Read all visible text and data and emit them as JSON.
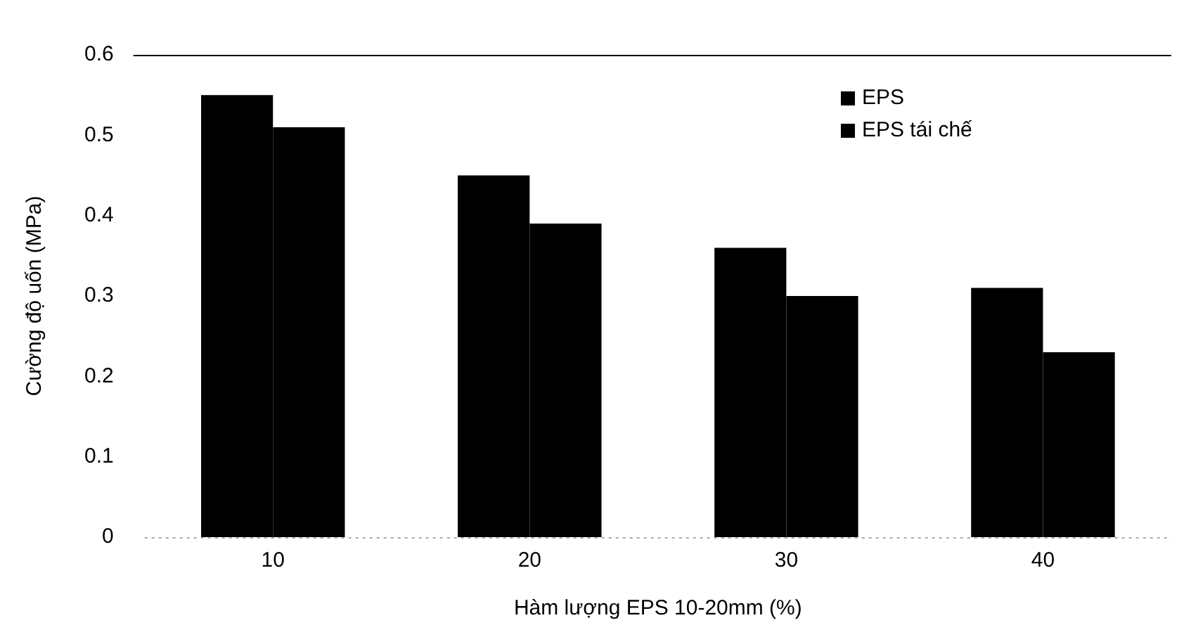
{
  "chart_data": {
    "type": "bar",
    "xlabel": "Hàm lượng EPS 10-20mm (%)",
    "ylabel": "Cường độ uốn (MPa)",
    "categories": [
      "10",
      "20",
      "30",
      "40"
    ],
    "series": [
      {
        "name": "EPS",
        "color": "#000000",
        "values": [
          0.55,
          0.45,
          0.36,
          0.31
        ]
      },
      {
        "name": "EPS tái chế",
        "color": "#000000",
        "values": [
          0.51,
          0.39,
          0.3,
          0.23
        ]
      }
    ],
    "ylim": [
      0,
      0.6
    ],
    "yticks": [
      0,
      0.1,
      0.2,
      0.3,
      0.4,
      0.5,
      0.6
    ],
    "grid": false,
    "legend": "top right"
  }
}
